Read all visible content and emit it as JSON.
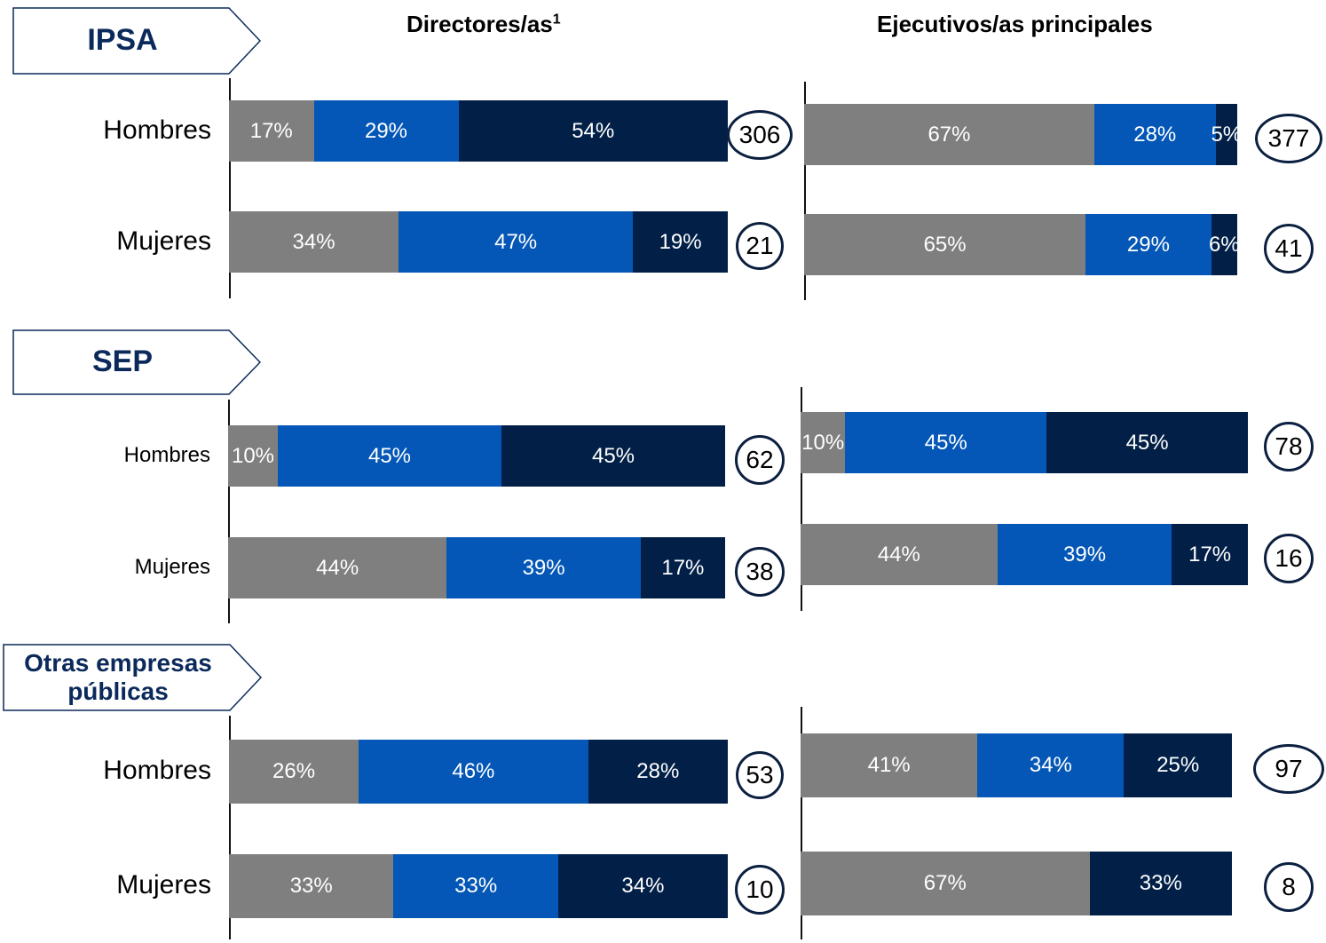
{
  "column_titles": {
    "directores": "Directores/as",
    "directores_sup": "1",
    "ejecutivos": "Ejecutivos/as principales"
  },
  "groups": [
    {
      "label": "IPSA"
    },
    {
      "label": "SEP"
    },
    {
      "label": "Otras empresas públicas"
    }
  ],
  "row_labels": [
    "Hombres",
    "Mujeres"
  ],
  "colors": {
    "segment_1": "#7f7f7f",
    "segment_2": "#0457b6",
    "segment_3": "#022047",
    "tag_text": "#0b2a5b",
    "circle_border": "#0b1f3f"
  },
  "chart_data": {
    "type": "bar",
    "orientation": "horizontal",
    "stacked": true,
    "normalized": "percent",
    "panels": [
      {
        "group": "IPSA",
        "column": "Directores/as",
        "rows": [
          {
            "category": "Hombres",
            "values": [
              17,
              29,
              54
            ],
            "labels": [
              "17%",
              "29%",
              "54%"
            ],
            "total": "306"
          },
          {
            "category": "Mujeres",
            "values": [
              34,
              47,
              19
            ],
            "labels": [
              "34%",
              "47%",
              "19%"
            ],
            "total": "21"
          }
        ]
      },
      {
        "group": "IPSA",
        "column": "Ejecutivos/as principales",
        "rows": [
          {
            "category": "Hombres",
            "values": [
              67,
              28,
              5
            ],
            "labels": [
              "67%",
              "28%",
              "5%"
            ],
            "total": "377"
          },
          {
            "category": "Mujeres",
            "values": [
              65,
              29,
              6
            ],
            "labels": [
              "65%",
              "29%",
              "6%"
            ],
            "total": "41"
          }
        ]
      },
      {
        "group": "SEP",
        "column": "Directores/as",
        "rows": [
          {
            "category": "Hombres",
            "values": [
              10,
              45,
              45
            ],
            "labels": [
              "10%",
              "45%",
              "45%"
            ],
            "total": "62"
          },
          {
            "category": "Mujeres",
            "values": [
              44,
              39,
              17
            ],
            "labels": [
              "44%",
              "39%",
              "17%"
            ],
            "total": "38"
          }
        ]
      },
      {
        "group": "SEP",
        "column": "Ejecutivos/as principales",
        "rows": [
          {
            "category": "Hombres",
            "values": [
              10,
              45,
              45
            ],
            "labels": [
              "10%",
              "45%",
              "45%"
            ],
            "total": "78"
          },
          {
            "category": "Mujeres",
            "values": [
              44,
              39,
              17
            ],
            "labels": [
              "44%",
              "39%",
              "17%"
            ],
            "total": "16"
          }
        ]
      },
      {
        "group": "Otras empresas públicas",
        "column": "Directores/as",
        "rows": [
          {
            "category": "Hombres",
            "values": [
              26,
              46,
              28
            ],
            "labels": [
              "26%",
              "46%",
              "28%"
            ],
            "total": "53"
          },
          {
            "category": "Mujeres",
            "values": [
              33,
              33,
              34
            ],
            "labels": [
              "33%",
              "33%",
              "34%"
            ],
            "total": "10"
          }
        ]
      },
      {
        "group": "Otras empresas públicas",
        "column": "Ejecutivos/as principales",
        "rows": [
          {
            "category": "Hombres",
            "values": [
              41,
              34,
              25
            ],
            "labels": [
              "41%",
              "34%",
              "25%"
            ],
            "total": "97"
          },
          {
            "category": "Mujeres",
            "values": [
              67,
              0,
              33
            ],
            "labels": [
              "67%",
              "",
              "33%"
            ],
            "total": "8"
          }
        ]
      }
    ]
  }
}
